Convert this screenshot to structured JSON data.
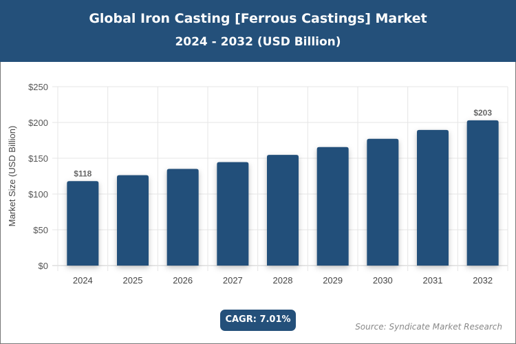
{
  "header": {
    "title": "Global Iron Casting [Ferrous Castings] Market",
    "subtitle": "2024 - 2032 (USD Billion)"
  },
  "chart_data": {
    "type": "bar",
    "title": "Global Iron Casting [Ferrous Castings] Market",
    "subtitle": "2024 - 2032 (USD Billion)",
    "categories": [
      "2024",
      "2025",
      "2026",
      "2027",
      "2028",
      "2029",
      "2030",
      "2031",
      "2032"
    ],
    "values": [
      118,
      126.3,
      135.1,
      144.6,
      154.7,
      165.6,
      177.2,
      189.6,
      203
    ],
    "data_labels": {
      "0": "$118",
      "8": "$203"
    },
    "xlabel": "",
    "ylabel": "Market Size (USD Billion)",
    "ylim": [
      0,
      250
    ],
    "yticks": [
      "$0",
      "$50",
      "$100",
      "$150",
      "$200",
      "$250"
    ],
    "grid": true,
    "bar_color": "#24507a"
  },
  "footer": {
    "cagr": "CAGR: 7.01%",
    "source": "Source: Syndicate Market Research"
  }
}
